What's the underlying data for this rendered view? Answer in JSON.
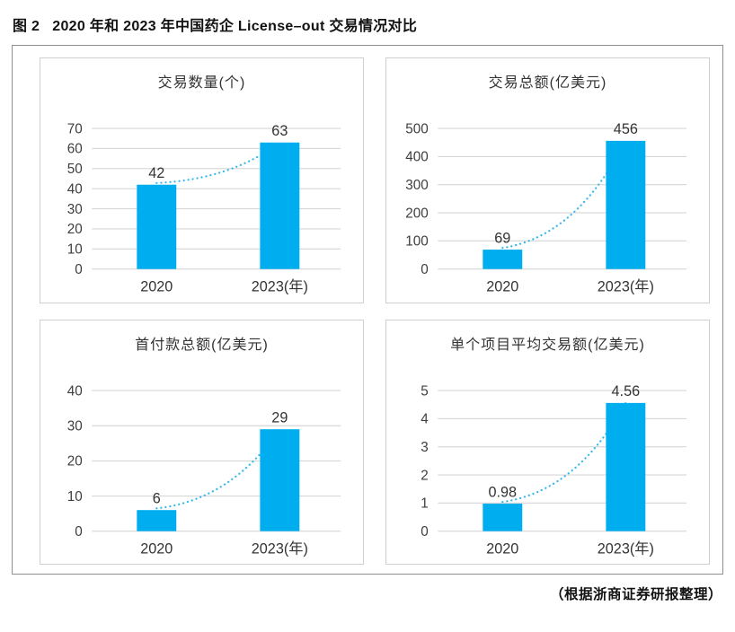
{
  "figure": {
    "label": "图 2",
    "title": "2020 年和 2023 年中国药企 License–out 交易情况对比",
    "source_note": "（根据浙商证券研报整理）"
  },
  "colors": {
    "bar": "#00AEEF",
    "trend": "#33B7EB",
    "grid": "#D6D6D6",
    "tick_text": "#3E3E3E",
    "value_text": "#333333",
    "panel_border": "#CFCFCF",
    "outer_border": "#8F8F8F"
  },
  "chart_data": [
    {
      "type": "bar",
      "title": "交易数量(个)",
      "categories": [
        "2020",
        "2023(年)"
      ],
      "values": [
        42,
        63
      ],
      "labels": [
        "42",
        "63"
      ],
      "ylim": [
        0,
        70
      ],
      "ystep": 10,
      "grid": true,
      "legend": "none",
      "trendline": "dotted"
    },
    {
      "type": "bar",
      "title": "交易总额(亿美元)",
      "categories": [
        "2020",
        "2023(年)"
      ],
      "values": [
        69,
        456
      ],
      "labels": [
        "69",
        "456"
      ],
      "ylim": [
        0,
        500
      ],
      "ystep": 100,
      "grid": true,
      "legend": "none",
      "trendline": "dotted"
    },
    {
      "type": "bar",
      "title": "首付款总额(亿美元)",
      "categories": [
        "2020",
        "2023(年)"
      ],
      "values": [
        6,
        29
      ],
      "labels": [
        "6",
        "29"
      ],
      "ylim": [
        0,
        40
      ],
      "ystep": 10,
      "grid": true,
      "legend": "none",
      "trendline": "dotted"
    },
    {
      "type": "bar",
      "title": "单个项目平均交易额(亿美元)",
      "categories": [
        "2020",
        "2023(年)"
      ],
      "values": [
        0.98,
        4.56
      ],
      "labels": [
        "0.98",
        "4.56"
      ],
      "ylim": [
        0,
        5
      ],
      "ystep": 1,
      "grid": true,
      "legend": "none",
      "trendline": "dotted"
    }
  ]
}
